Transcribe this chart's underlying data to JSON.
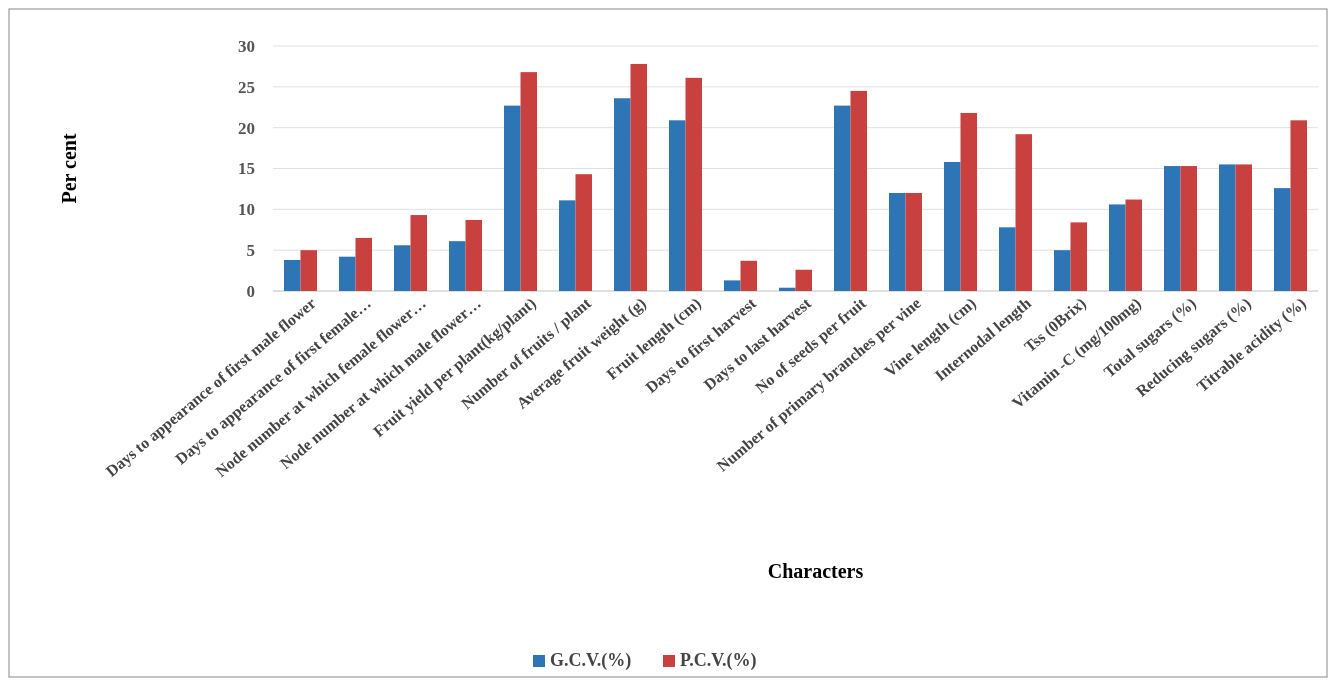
{
  "chart_data": {
    "type": "bar",
    "xlabel": "Characters",
    "ylabel": "Per cent",
    "categories": [
      "Days to appearance of first male flower",
      "Days to appearance of first female…",
      "Node number at which female flower…",
      "Node number at which male flower…",
      "Fruit yield per plant(kg/plant)",
      "Number of fruits / plant",
      "Average fruit weight (g)",
      "Fruit length (cm)",
      "Days to first harvest",
      "Days to last harvest",
      "No of seeds per fruit",
      "Number of primary branches per vine",
      "Vine length (cm)",
      "Internodal length",
      "Tss (0Brix)",
      "Vitamin -C (mg/100mg)",
      "Total sugars (%)",
      "Reducing sugars (%)",
      "Titrable acidity (%)"
    ],
    "series": [
      {
        "name": "G.C.V.(%)",
        "color": "#2e75b6",
        "values": [
          3.8,
          4.2,
          5.6,
          6.1,
          22.7,
          11.1,
          23.6,
          20.9,
          1.3,
          0.4,
          22.7,
          12.0,
          15.8,
          7.8,
          5.0,
          10.6,
          15.3,
          15.5,
          12.6
        ]
      },
      {
        "name": "P.C.V.(%)",
        "color": "#c9413e",
        "values": [
          5.0,
          6.5,
          9.3,
          8.7,
          26.8,
          14.3,
          27.8,
          26.1,
          3.7,
          2.6,
          24.5,
          12.0,
          21.8,
          19.2,
          8.4,
          11.2,
          15.3,
          15.5,
          20.9
        ]
      }
    ],
    "ylim": [
      0,
      30
    ],
    "yticks": [
      0,
      5,
      10,
      15,
      20,
      25,
      30
    ],
    "grid": "y",
    "legend": "bottom"
  }
}
